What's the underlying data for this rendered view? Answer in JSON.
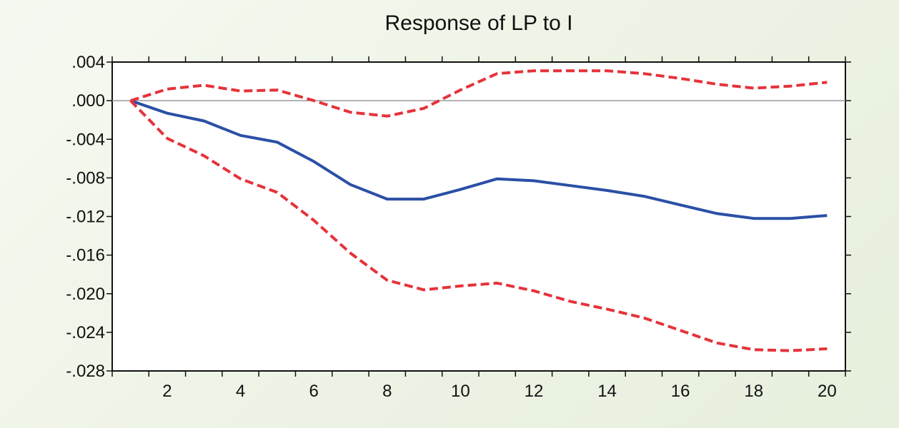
{
  "chart_data": {
    "type": "line",
    "title": "Response of LP to I",
    "x": [
      1,
      2,
      3,
      4,
      5,
      6,
      7,
      8,
      9,
      10,
      11,
      12,
      13,
      14,
      15,
      16,
      17,
      18,
      19,
      20
    ],
    "xlim": [
      0.5,
      20.5
    ],
    "ylim": [
      -0.028,
      0.004
    ],
    "x_tick_labels": [
      "2",
      "4",
      "6",
      "8",
      "10",
      "12",
      "14",
      "16",
      "18",
      "20"
    ],
    "y_tick_labels": [
      ".004",
      ".000",
      "-.004",
      "-.008",
      "-.012",
      "-.016",
      "-.020",
      "-.024",
      "-.028"
    ],
    "grid": false,
    "zero_line": true,
    "series": [
      {
        "color": "#2b4fa6",
        "style": "solid",
        "values": [
          0.0,
          -0.0013,
          -0.0021,
          -0.0036,
          -0.0043,
          -0.0063,
          -0.0087,
          -0.0102,
          -0.0102,
          -0.0092,
          -0.0081,
          -0.0083,
          -0.0088,
          -0.0093,
          -0.0099,
          -0.0108,
          -0.0117,
          -0.0122,
          -0.0122,
          -0.0119
        ]
      },
      {
        "color": "#e5333b",
        "style": "dashed",
        "values": [
          0.0,
          0.0012,
          0.0016,
          0.001,
          0.0011,
          0.0,
          -0.0012,
          -0.0016,
          -0.0008,
          0.0011,
          0.0028,
          0.0031,
          0.0031,
          0.0031,
          0.0028,
          0.0023,
          0.0017,
          0.0013,
          0.0015,
          0.0019
        ]
      },
      {
        "color": "#e5333b",
        "style": "dashed",
        "values": [
          0.0,
          -0.0039,
          -0.0057,
          -0.0081,
          -0.0095,
          -0.0124,
          -0.0158,
          -0.0186,
          -0.0196,
          -0.0192,
          -0.0189,
          -0.0197,
          -0.0208,
          -0.0216,
          -0.0225,
          -0.0238,
          -0.0251,
          -0.0258,
          -0.0259,
          -0.0257
        ]
      }
    ]
  }
}
